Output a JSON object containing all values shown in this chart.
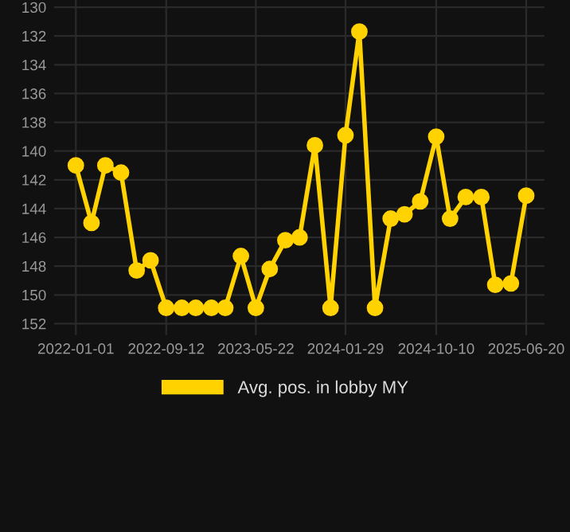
{
  "chart_data": {
    "type": "line",
    "x": [
      "2022-01-01",
      "2022-02-14",
      "2022-03-25",
      "2022-05-08",
      "2022-06-21",
      "2022-07-30",
      "2022-09-12",
      "2022-10-26",
      "2022-12-04",
      "2023-01-17",
      "2023-02-25",
      "2023-04-10",
      "2023-05-22",
      "2023-06-30",
      "2023-08-13",
      "2023-09-22",
      "2023-11-04",
      "2023-12-18",
      "2024-01-29",
      "2024-03-08",
      "2024-04-21",
      "2024-06-04",
      "2024-07-13",
      "2024-08-26",
      "2024-10-10",
      "2024-11-18",
      "2025-01-01",
      "2025-02-14",
      "2025-03-25",
      "2025-05-08",
      "2025-06-20"
    ],
    "series": [
      {
        "name": "Avg. pos. in lobby MY",
        "color": "#ffd200",
        "values": [
          141.0,
          145.0,
          141.0,
          141.5,
          148.3,
          147.6,
          150.9,
          150.9,
          150.9,
          150.9,
          150.9,
          147.3,
          150.9,
          148.2,
          146.2,
          146.0,
          139.6,
          150.9,
          138.9,
          131.7,
          150.9,
          144.7,
          144.4,
          143.5,
          139.0,
          144.7,
          143.2,
          143.2,
          149.3,
          149.2,
          143.1
        ]
      }
    ],
    "xlim": [
      "2021-11-01",
      "2025-08-10"
    ],
    "xticks": [
      "2022-01-01",
      "2022-09-12",
      "2023-05-22",
      "2024-01-29",
      "2024-10-10",
      "2025-06-20"
    ],
    "ylim": [
      152.8,
      129.5
    ],
    "yticks": [
      130,
      132,
      134,
      136,
      138,
      140,
      142,
      144,
      146,
      148,
      150,
      152
    ],
    "grid": true,
    "legend": "bottom",
    "marker": "circle",
    "line_style": "solid"
  }
}
